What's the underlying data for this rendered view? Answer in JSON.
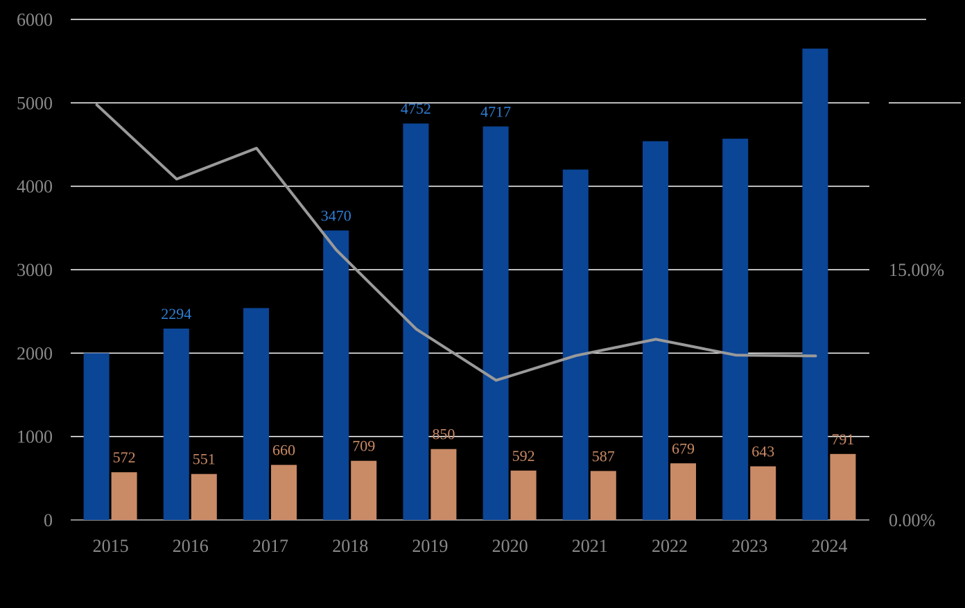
{
  "chart_data": {
    "type": "bar",
    "categories": [
      "2015",
      "2016",
      "2017",
      "2018",
      "2019",
      "2020",
      "2021",
      "2022",
      "2023",
      "2024"
    ],
    "series": [
      {
        "type": "bar",
        "color": "#0b4596",
        "label_color": "#2f7fd6",
        "axis": "left",
        "values": [
          2000,
          2294,
          2540,
          3470,
          4752,
          4717,
          4200,
          4540,
          4570,
          5650
        ],
        "data_labels": [
          "",
          "2294",
          "",
          "3470",
          "4752",
          "4717",
          "",
          "",
          "",
          ""
        ]
      },
      {
        "type": "bar",
        "color": "#c98a66",
        "label_color": "#c98a66",
        "axis": "left",
        "values": [
          572,
          551,
          660,
          709,
          850,
          592,
          587,
          679,
          643,
          791
        ],
        "data_labels": [
          "572",
          "551",
          "660",
          "709",
          "850",
          "592",
          "587",
          "679",
          "643",
          "791"
        ]
      },
      {
        "type": "line",
        "color": "#9a9a9a",
        "axis": "right",
        "values": [
          0.2488,
          0.2043,
          0.2228,
          0.1618,
          0.1144,
          0.0837,
          0.0985,
          0.1083,
          0.0988,
          0.0983
        ]
      }
    ],
    "ylim_left": [
      0,
      6000
    ],
    "yticks_left": [
      "0",
      "1000",
      "2000",
      "3000",
      "4000",
      "5000",
      "6000"
    ],
    "ylim_right": [
      0,
      0.3
    ],
    "yticks_right": [
      "0.00%",
      "15.00%"
    ],
    "grid": true,
    "background": "#000000",
    "grid_color": "#ffffff"
  }
}
